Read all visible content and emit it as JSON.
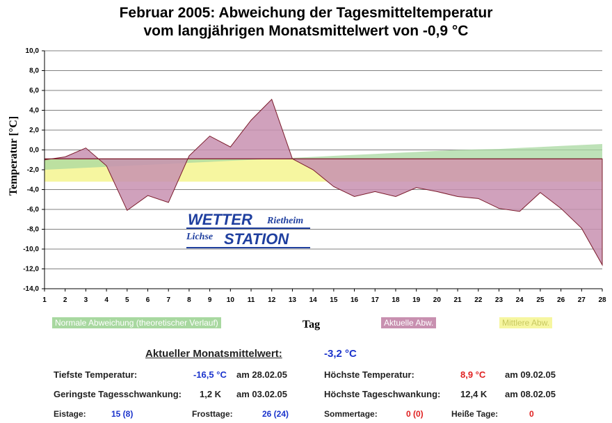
{
  "title_line1": "Februar 2005: Abweichung der Tagesmitteltemperatur",
  "title_line2": "vom langjährigen Monatsmittelwert von -0,9 °C",
  "chart_data": {
    "type": "area",
    "title": "Februar 2005: Abweichung der Tagesmitteltemperatur vom langjährigen Monatsmittelwert von -0,9 °C",
    "xlabel": "Tag",
    "ylabel": "Temperatur [°C]",
    "ylim": [
      -14,
      10
    ],
    "xlim": [
      1,
      28
    ],
    "y_ticks": [
      "10,0",
      "8,0",
      "6,0",
      "4,0",
      "2,0",
      "0,0",
      "-2,0",
      "-4,0",
      "-6,0",
      "-8,0",
      "-10,0",
      "-12,0",
      "-14,0"
    ],
    "y_tick_values": [
      10,
      8,
      6,
      4,
      2,
      0,
      -2,
      -4,
      -6,
      -8,
      -10,
      -12,
      -14
    ],
    "x": [
      1,
      2,
      3,
      4,
      5,
      6,
      7,
      8,
      9,
      10,
      11,
      12,
      13,
      14,
      15,
      16,
      17,
      18,
      19,
      20,
      21,
      22,
      23,
      24,
      25,
      26,
      27,
      28
    ],
    "grid": true,
    "baseline": -0.9,
    "series": [
      {
        "name": "Normale Abweichung (theoretischer Verlauf)",
        "color": "#a8d8a0",
        "values": [
          -2.0,
          -1.9,
          -1.8,
          -1.7,
          -1.6,
          -1.5,
          -1.4,
          -1.3,
          -1.2,
          -1.1,
          -1.0,
          -0.9,
          -0.8,
          -0.7,
          -0.6,
          -0.5,
          -0.4,
          -0.3,
          -0.2,
          -0.1,
          0.0,
          0.05,
          0.1,
          0.2,
          0.3,
          0.4,
          0.5,
          0.6
        ]
      },
      {
        "name": "Aktuelle Abw.",
        "color": "#c890b0",
        "values": [
          -1.0,
          -0.7,
          0.2,
          -1.6,
          -6.1,
          -4.6,
          -5.3,
          -0.6,
          1.4,
          0.3,
          3.0,
          5.1,
          -0.9,
          -2.0,
          -3.7,
          -4.7,
          -4.2,
          -4.7,
          -3.8,
          -4.2,
          -4.7,
          -4.9,
          -5.9,
          -6.2,
          -4.3,
          -5.9,
          -7.9,
          -11.6
        ]
      },
      {
        "name": "Mittlere Abw.",
        "color": "#f6f6a0",
        "values": [
          -3.2,
          -3.2,
          -3.2,
          -3.2,
          -3.2,
          -3.2,
          -3.2,
          -3.2,
          -3.2,
          -3.2,
          -3.2,
          -3.2,
          -3.2,
          -3.2,
          -3.2,
          -3.2,
          -3.2,
          -3.2,
          -3.2,
          -3.2,
          -3.2,
          -3.2,
          -3.2,
          -3.2,
          -3.2,
          -3.2,
          -3.2,
          -3.2
        ]
      }
    ]
  },
  "legend": {
    "normal": "Normale Abweichung (theoretischer Verlauf)",
    "actual": "Aktuelle Abw.",
    "mean": "Mittlere Abw."
  },
  "axis": {
    "x": "Tag",
    "y": "Temperatur [°C]"
  },
  "logo": {
    "wetter": "WETTER",
    "rietheim": "Rietheim",
    "lichse": "Lichse",
    "station": "STATION"
  },
  "stats": {
    "header_label": "Aktueller Monatsmittelwert:",
    "header_value": "-3,2 °C",
    "min_temp_label": "Tiefste Temperatur:",
    "min_temp_value": "-16,5 °C",
    "min_temp_date": "am 28.02.05",
    "max_temp_label": "Höchste Temperatur:",
    "max_temp_value": "8,9 °C",
    "max_temp_date": "am 09.02.05",
    "min_range_label": "Geringste Tagesschwankung:",
    "min_range_value": "1,2 K",
    "min_range_date": "am 03.02.05",
    "max_range_label": "Höchste Tageschwankung:",
    "max_range_value": "12,4 K",
    "max_range_date": "am 08.02.05",
    "eistage_label": "Eistage:",
    "eistage_value": "15 (8)",
    "frosttage_label": "Frosttage:",
    "frosttage_value": "26 (24)",
    "sommertage_label": "Sommertage:",
    "sommertage_value": "0 (0)",
    "heisse_label": "Heiße Tage:",
    "heisse_value": "0"
  }
}
